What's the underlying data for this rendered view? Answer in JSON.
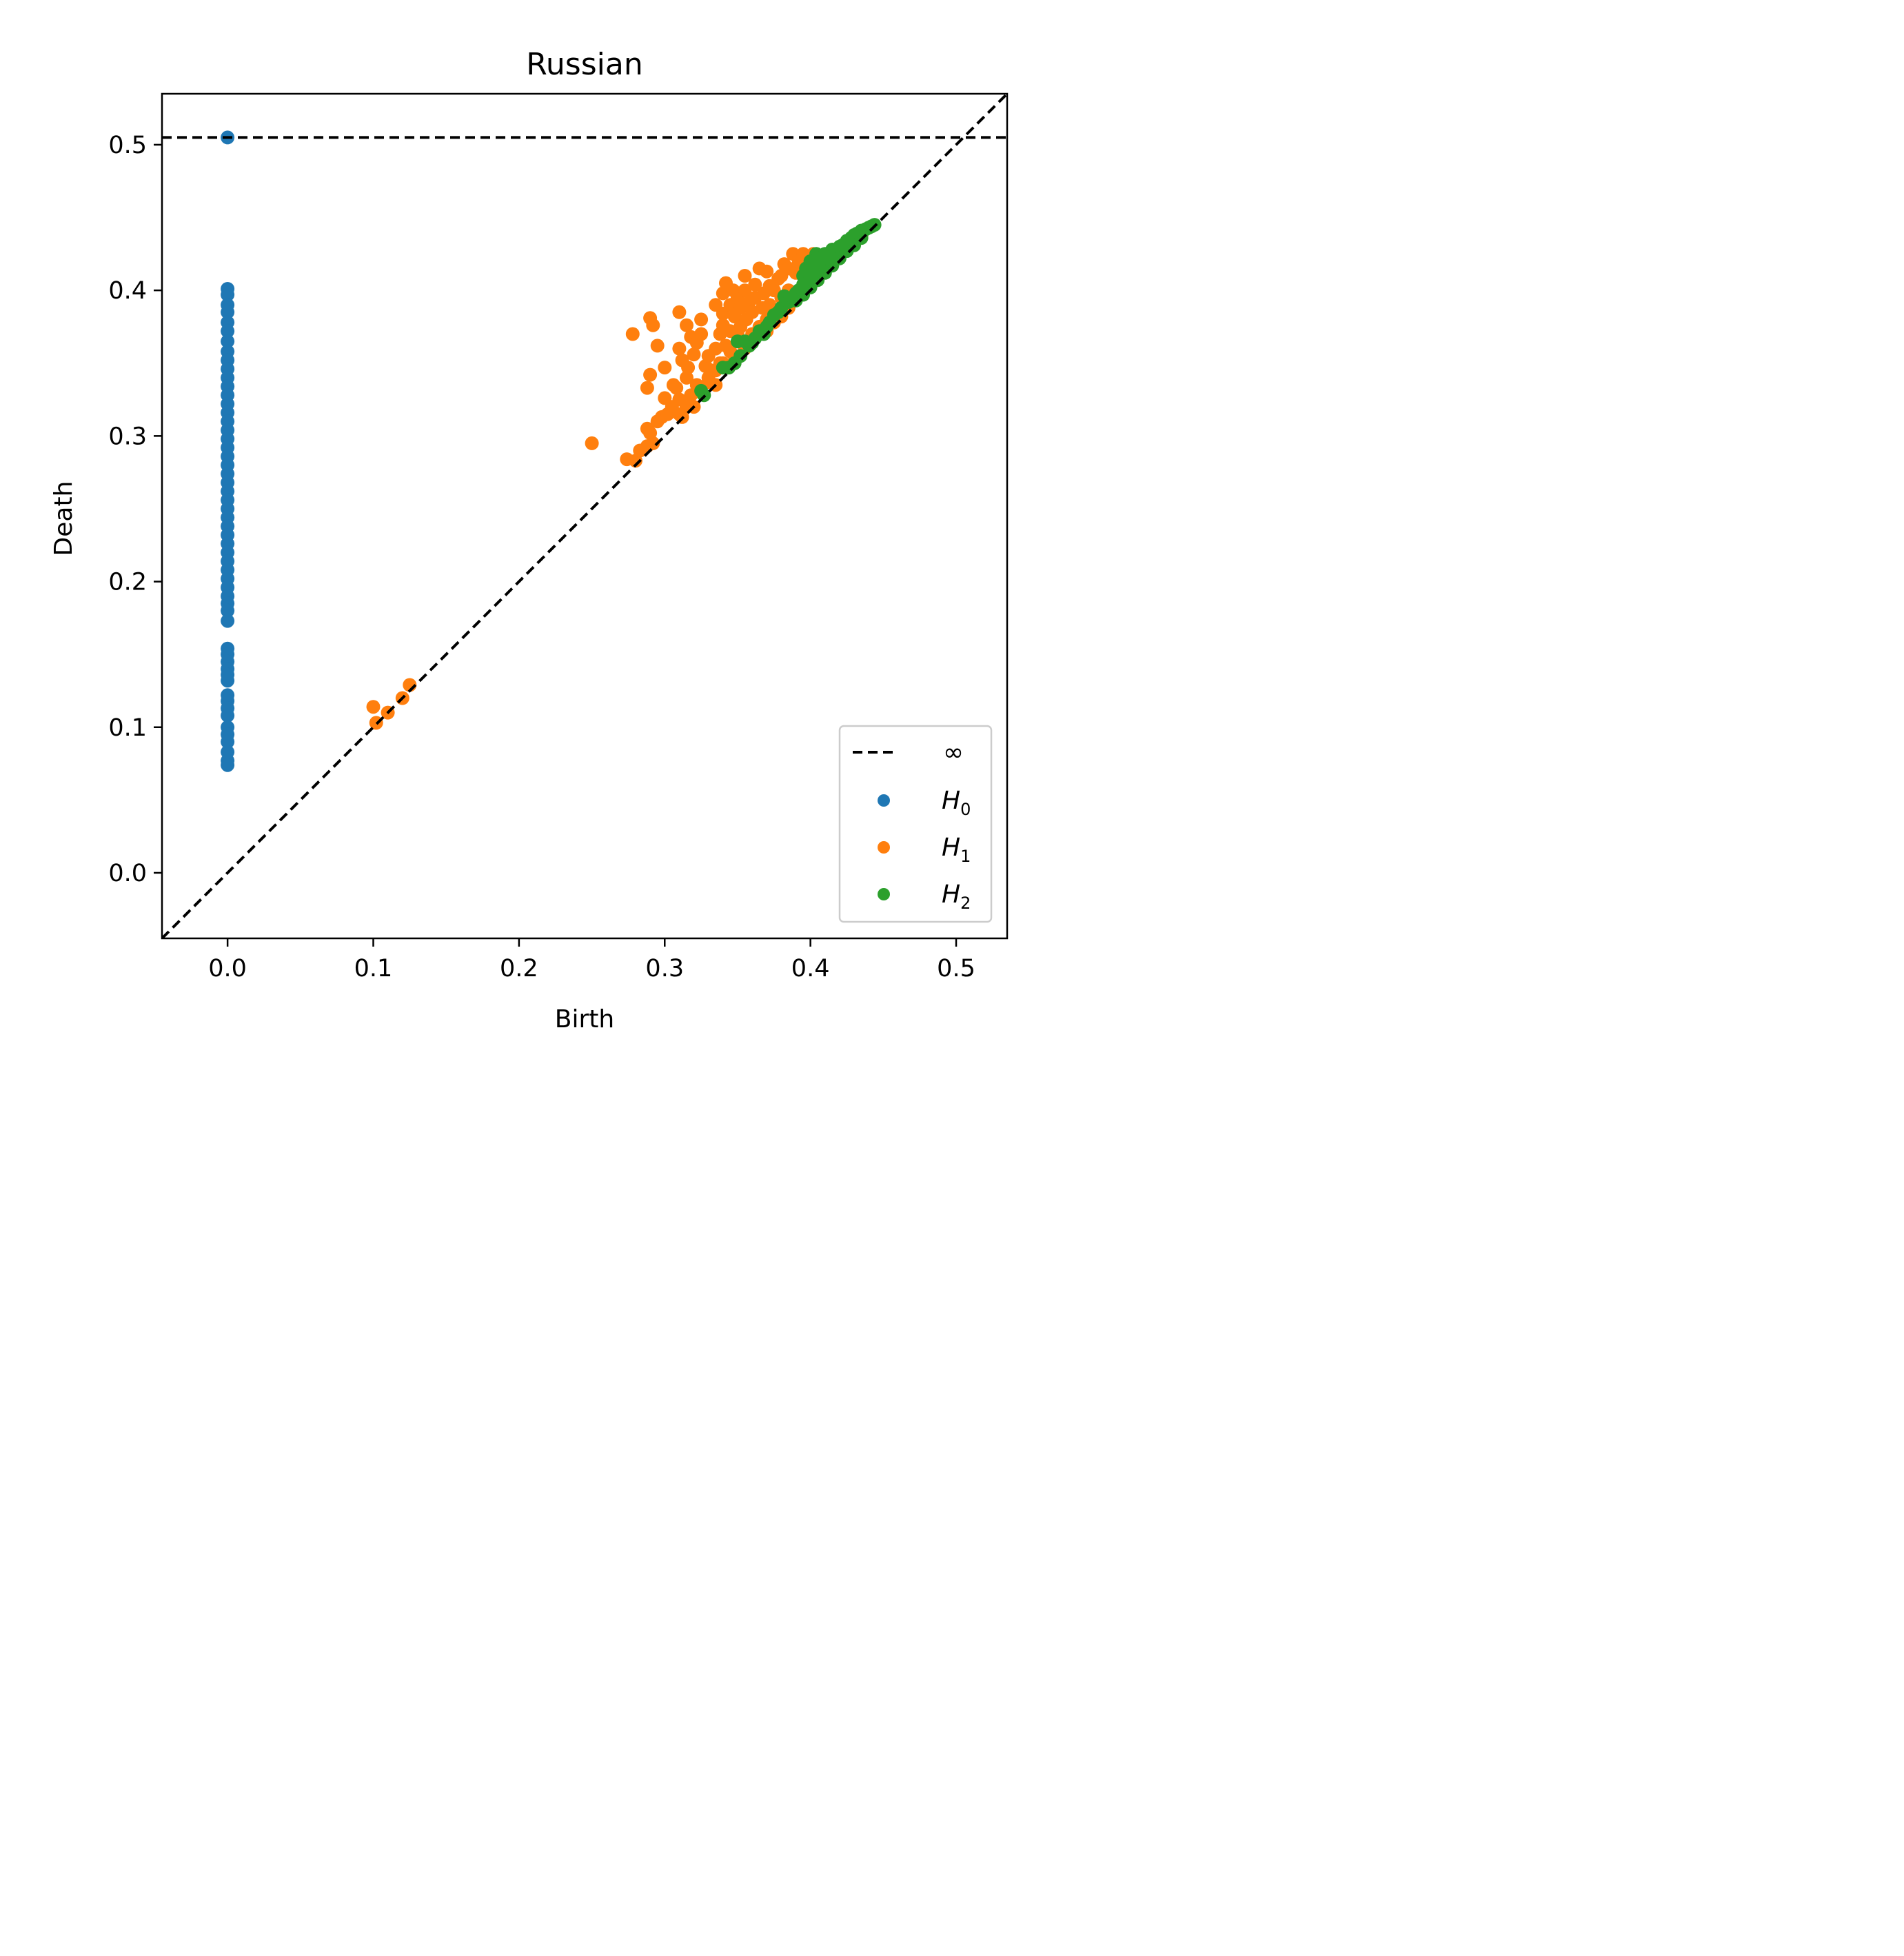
{
  "chart_data": {
    "type": "scatter",
    "title": "Russian",
    "xlabel": "Birth",
    "ylabel": "Death",
    "xlim": [
      -0.045,
      0.535
    ],
    "ylim": [
      -0.045,
      0.535
    ],
    "xticks": [
      "0.0",
      "0.1",
      "0.2",
      "0.3",
      "0.4",
      "0.5"
    ],
    "yticks": [
      "0.0",
      "0.1",
      "0.2",
      "0.3",
      "0.4",
      "0.5"
    ],
    "xtick_values": [
      0.0,
      0.1,
      0.2,
      0.3,
      0.4,
      0.5
    ],
    "ytick_values": [
      0.0,
      0.1,
      0.2,
      0.3,
      0.4,
      0.5
    ],
    "grid": false,
    "legend_position": "bottom-right",
    "infinity_line": {
      "label": "∞",
      "y": 0.505,
      "color": "#000000",
      "style": "dashed"
    },
    "diagonal": {
      "color": "#000000",
      "style": "dashed"
    },
    "series": [
      {
        "name": "H",
        "sub": "0",
        "color": "#1f77b4",
        "points": [
          [
            0.0,
            0.505
          ],
          [
            0.0,
            0.401
          ],
          [
            0.0,
            0.397
          ],
          [
            0.0,
            0.39
          ],
          [
            0.0,
            0.385
          ],
          [
            0.0,
            0.378
          ],
          [
            0.0,
            0.372
          ],
          [
            0.0,
            0.365
          ],
          [
            0.0,
            0.358
          ],
          [
            0.0,
            0.352
          ],
          [
            0.0,
            0.346
          ],
          [
            0.0,
            0.34
          ],
          [
            0.0,
            0.334
          ],
          [
            0.0,
            0.328
          ],
          [
            0.0,
            0.322
          ],
          [
            0.0,
            0.316
          ],
          [
            0.0,
            0.31
          ],
          [
            0.0,
            0.304
          ],
          [
            0.0,
            0.298
          ],
          [
            0.0,
            0.292
          ],
          [
            0.0,
            0.286
          ],
          [
            0.0,
            0.28
          ],
          [
            0.0,
            0.274
          ],
          [
            0.0,
            0.268
          ],
          [
            0.0,
            0.262
          ],
          [
            0.0,
            0.256
          ],
          [
            0.0,
            0.25
          ],
          [
            0.0,
            0.244
          ],
          [
            0.0,
            0.238
          ],
          [
            0.0,
            0.232
          ],
          [
            0.0,
            0.226
          ],
          [
            0.0,
            0.22
          ],
          [
            0.0,
            0.214
          ],
          [
            0.0,
            0.208
          ],
          [
            0.0,
            0.202
          ],
          [
            0.0,
            0.196
          ],
          [
            0.0,
            0.19
          ],
          [
            0.0,
            0.185
          ],
          [
            0.0,
            0.18
          ],
          [
            0.0,
            0.173
          ],
          [
            0.0,
            0.154
          ],
          [
            0.0,
            0.15
          ],
          [
            0.0,
            0.145
          ],
          [
            0.0,
            0.14
          ],
          [
            0.0,
            0.136
          ],
          [
            0.0,
            0.132
          ],
          [
            0.0,
            0.122
          ],
          [
            0.0,
            0.118
          ],
          [
            0.0,
            0.113
          ],
          [
            0.0,
            0.108
          ],
          [
            0.0,
            0.1
          ],
          [
            0.0,
            0.095
          ],
          [
            0.0,
            0.09
          ],
          [
            0.0,
            0.083
          ],
          [
            0.0,
            0.077
          ],
          [
            0.0,
            0.074
          ]
        ]
      },
      {
        "name": "H",
        "sub": "1",
        "color": "#ff7f0e",
        "points": [
          [
            0.1,
            0.114
          ],
          [
            0.102,
            0.103
          ],
          [
            0.11,
            0.11
          ],
          [
            0.12,
            0.12
          ],
          [
            0.125,
            0.129
          ],
          [
            0.25,
            0.295
          ],
          [
            0.274,
            0.284
          ],
          [
            0.28,
            0.283
          ],
          [
            0.283,
            0.29
          ],
          [
            0.288,
            0.293
          ],
          [
            0.292,
            0.295
          ],
          [
            0.278,
            0.37
          ],
          [
            0.29,
            0.381
          ],
          [
            0.292,
            0.376
          ],
          [
            0.295,
            0.362
          ],
          [
            0.3,
            0.347
          ],
          [
            0.29,
            0.342
          ],
          [
            0.288,
            0.333
          ],
          [
            0.288,
            0.305
          ],
          [
            0.29,
            0.302
          ],
          [
            0.295,
            0.31
          ],
          [
            0.298,
            0.313
          ],
          [
            0.3,
            0.326
          ],
          [
            0.302,
            0.315
          ],
          [
            0.305,
            0.32
          ],
          [
            0.306,
            0.335
          ],
          [
            0.308,
            0.333
          ],
          [
            0.31,
            0.325
          ],
          [
            0.31,
            0.315
          ],
          [
            0.312,
            0.313
          ],
          [
            0.315,
            0.32
          ],
          [
            0.315,
            0.34
          ],
          [
            0.318,
            0.328
          ],
          [
            0.32,
            0.32
          ],
          [
            0.322,
            0.335
          ],
          [
            0.31,
            0.385
          ],
          [
            0.315,
            0.376
          ],
          [
            0.318,
            0.368
          ],
          [
            0.31,
            0.36
          ],
          [
            0.312,
            0.352
          ],
          [
            0.316,
            0.347
          ],
          [
            0.32,
            0.356
          ],
          [
            0.322,
            0.364
          ],
          [
            0.325,
            0.38
          ],
          [
            0.325,
            0.37
          ],
          [
            0.328,
            0.348
          ],
          [
            0.33,
            0.355
          ],
          [
            0.33,
            0.337
          ],
          [
            0.332,
            0.345
          ],
          [
            0.335,
            0.36
          ],
          [
            0.335,
            0.39
          ],
          [
            0.335,
            0.335
          ],
          [
            0.338,
            0.37
          ],
          [
            0.338,
            0.35
          ],
          [
            0.34,
            0.384
          ],
          [
            0.34,
            0.376
          ],
          [
            0.342,
            0.405
          ],
          [
            0.34,
            0.398
          ],
          [
            0.345,
            0.372
          ],
          [
            0.345,
            0.39
          ],
          [
            0.345,
            0.358
          ],
          [
            0.347,
            0.4
          ],
          [
            0.348,
            0.382
          ],
          [
            0.35,
            0.395
          ],
          [
            0.35,
            0.365
          ],
          [
            0.352,
            0.388
          ],
          [
            0.352,
            0.375
          ],
          [
            0.355,
            0.41
          ],
          [
            0.355,
            0.4
          ],
          [
            0.356,
            0.38
          ],
          [
            0.358,
            0.392
          ],
          [
            0.36,
            0.37
          ],
          [
            0.36,
            0.385
          ],
          [
            0.362,
            0.395
          ],
          [
            0.362,
            0.404
          ],
          [
            0.365,
            0.415
          ],
          [
            0.365,
            0.375
          ],
          [
            0.367,
            0.388
          ],
          [
            0.368,
            0.398
          ],
          [
            0.37,
            0.413
          ],
          [
            0.37,
            0.38
          ],
          [
            0.372,
            0.403
          ],
          [
            0.372,
            0.39
          ],
          [
            0.375,
            0.4
          ],
          [
            0.375,
            0.385
          ],
          [
            0.378,
            0.408
          ],
          [
            0.38,
            0.41
          ],
          [
            0.38,
            0.395
          ],
          [
            0.382,
            0.418
          ],
          [
            0.385,
            0.415
          ],
          [
            0.385,
            0.4
          ],
          [
            0.388,
            0.425
          ],
          [
            0.39,
            0.412
          ],
          [
            0.392,
            0.42
          ],
          [
            0.395,
            0.425
          ],
          [
            0.395,
            0.41
          ],
          [
            0.398,
            0.418
          ],
          [
            0.4,
            0.422
          ],
          [
            0.402,
            0.425
          ],
          [
            0.35,
            0.37
          ],
          [
            0.355,
            0.36
          ],
          [
            0.36,
            0.365
          ],
          [
            0.365,
            0.37
          ],
          [
            0.33,
            0.34
          ],
          [
            0.325,
            0.33
          ],
          [
            0.335,
            0.345
          ],
          [
            0.34,
            0.35
          ],
          [
            0.342,
            0.362
          ],
          [
            0.348,
            0.355
          ],
          [
            0.37,
            0.372
          ],
          [
            0.375,
            0.378
          ],
          [
            0.38,
            0.382
          ],
          [
            0.385,
            0.388
          ],
          [
            0.39,
            0.395
          ],
          [
            0.395,
            0.4
          ],
          [
            0.4,
            0.405
          ],
          [
            0.405,
            0.41
          ],
          [
            0.41,
            0.415
          ],
          [
            0.415,
            0.42
          ],
          [
            0.42,
            0.425
          ],
          [
            0.425,
            0.428
          ],
          [
            0.43,
            0.432
          ],
          [
            0.435,
            0.437
          ]
        ]
      },
      {
        "name": "H",
        "sub": "2",
        "color": "#2ca02c",
        "points": [
          [
            0.325,
            0.331
          ],
          [
            0.327,
            0.328
          ],
          [
            0.34,
            0.347
          ],
          [
            0.344,
            0.347
          ],
          [
            0.348,
            0.35
          ],
          [
            0.35,
            0.365
          ],
          [
            0.352,
            0.355
          ],
          [
            0.355,
            0.365
          ],
          [
            0.358,
            0.362
          ],
          [
            0.36,
            0.364
          ],
          [
            0.362,
            0.367
          ],
          [
            0.365,
            0.372
          ],
          [
            0.368,
            0.37
          ],
          [
            0.37,
            0.375
          ],
          [
            0.372,
            0.378
          ],
          [
            0.375,
            0.383
          ],
          [
            0.378,
            0.385
          ],
          [
            0.38,
            0.388
          ],
          [
            0.382,
            0.396
          ],
          [
            0.385,
            0.392
          ],
          [
            0.388,
            0.395
          ],
          [
            0.39,
            0.398
          ],
          [
            0.392,
            0.4
          ],
          [
            0.395,
            0.404
          ],
          [
            0.397,
            0.415
          ],
          [
            0.4,
            0.408
          ],
          [
            0.402,
            0.412
          ],
          [
            0.404,
            0.425
          ],
          [
            0.405,
            0.414
          ],
          [
            0.408,
            0.418
          ],
          [
            0.41,
            0.42
          ],
          [
            0.412,
            0.422
          ],
          [
            0.415,
            0.428
          ],
          [
            0.418,
            0.427
          ],
          [
            0.42,
            0.43
          ],
          [
            0.422,
            0.431
          ],
          [
            0.425,
            0.434
          ],
          [
            0.428,
            0.436
          ],
          [
            0.43,
            0.438
          ],
          [
            0.432,
            0.439
          ],
          [
            0.435,
            0.441
          ],
          [
            0.438,
            0.442
          ],
          [
            0.44,
            0.443
          ],
          [
            0.442,
            0.444
          ],
          [
            0.444,
            0.445
          ],
          [
            0.39,
            0.393
          ],
          [
            0.395,
            0.397
          ],
          [
            0.4,
            0.402
          ],
          [
            0.405,
            0.407
          ],
          [
            0.41,
            0.412
          ],
          [
            0.415,
            0.417
          ],
          [
            0.42,
            0.422
          ],
          [
            0.425,
            0.427
          ],
          [
            0.43,
            0.431
          ],
          [
            0.435,
            0.436
          ],
          [
            0.4,
            0.42
          ],
          [
            0.405,
            0.422
          ],
          [
            0.41,
            0.425
          ],
          [
            0.395,
            0.41
          ],
          [
            0.398,
            0.405
          ]
        ]
      }
    ]
  }
}
